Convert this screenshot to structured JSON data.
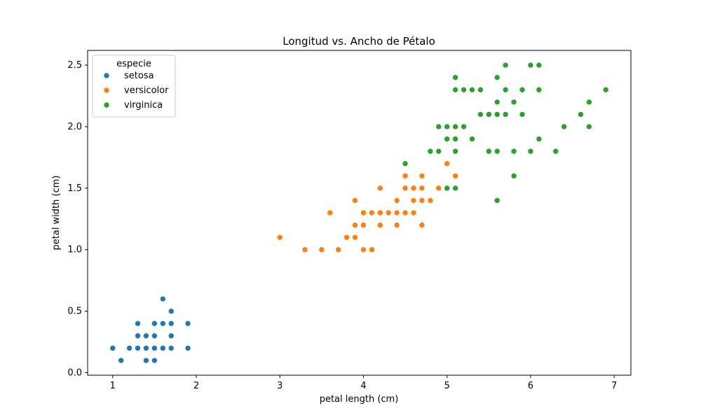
{
  "chart_data": {
    "type": "scatter",
    "title": "Longitud vs. Ancho de Pétalo",
    "xlabel": "petal length (cm)",
    "ylabel": "petal width (cm)",
    "xlim": [
      0.7,
      7.2
    ],
    "ylim": [
      -0.02,
      2.62
    ],
    "xticks": [
      1,
      2,
      3,
      4,
      5,
      6,
      7
    ],
    "yticks": [
      0.0,
      0.5,
      1.0,
      1.5,
      2.0,
      2.5
    ],
    "xtick_labels": [
      "1",
      "2",
      "3",
      "4",
      "5",
      "6",
      "7"
    ],
    "ytick_labels": [
      "0.0",
      "0.5",
      "1.0",
      "1.5",
      "2.0",
      "2.5"
    ],
    "grid": false,
    "legend": {
      "title": "especie",
      "placement": "top-left"
    },
    "series": [
      {
        "name": "setosa",
        "color": "#1f77b4",
        "points": [
          [
            1.0,
            0.2
          ],
          [
            1.1,
            0.1
          ],
          [
            1.2,
            0.2
          ],
          [
            1.3,
            0.2
          ],
          [
            1.3,
            0.3
          ],
          [
            1.3,
            0.4
          ],
          [
            1.4,
            0.1
          ],
          [
            1.4,
            0.2
          ],
          [
            1.4,
            0.3
          ],
          [
            1.5,
            0.1
          ],
          [
            1.5,
            0.2
          ],
          [
            1.5,
            0.3
          ],
          [
            1.5,
            0.4
          ],
          [
            1.6,
            0.2
          ],
          [
            1.6,
            0.4
          ],
          [
            1.6,
            0.6
          ],
          [
            1.7,
            0.2
          ],
          [
            1.7,
            0.3
          ],
          [
            1.7,
            0.4
          ],
          [
            1.7,
            0.5
          ],
          [
            1.9,
            0.2
          ],
          [
            1.9,
            0.4
          ]
        ]
      },
      {
        "name": "versicolor",
        "color": "#ff7f0e",
        "points": [
          [
            3.0,
            1.1
          ],
          [
            3.3,
            1.0
          ],
          [
            3.5,
            1.0
          ],
          [
            3.6,
            1.3
          ],
          [
            3.7,
            1.0
          ],
          [
            3.8,
            1.1
          ],
          [
            3.9,
            1.1
          ],
          [
            3.9,
            1.2
          ],
          [
            3.9,
            1.4
          ],
          [
            4.0,
            1.0
          ],
          [
            4.0,
            1.2
          ],
          [
            4.0,
            1.3
          ],
          [
            4.1,
            1.0
          ],
          [
            4.1,
            1.3
          ],
          [
            4.2,
            1.2
          ],
          [
            4.2,
            1.3
          ],
          [
            4.2,
            1.5
          ],
          [
            4.3,
            1.3
          ],
          [
            4.4,
            1.2
          ],
          [
            4.4,
            1.3
          ],
          [
            4.4,
            1.4
          ],
          [
            4.5,
            1.3
          ],
          [
            4.5,
            1.5
          ],
          [
            4.5,
            1.6
          ],
          [
            4.6,
            1.3
          ],
          [
            4.6,
            1.4
          ],
          [
            4.6,
            1.5
          ],
          [
            4.7,
            1.2
          ],
          [
            4.7,
            1.4
          ],
          [
            4.7,
            1.5
          ],
          [
            4.7,
            1.6
          ],
          [
            4.8,
            1.4
          ],
          [
            4.8,
            1.8
          ],
          [
            4.9,
            1.5
          ],
          [
            5.0,
            1.7
          ],
          [
            5.1,
            1.6
          ]
        ]
      },
      {
        "name": "virginica",
        "color": "#2ca02c",
        "points": [
          [
            4.5,
            1.7
          ],
          [
            4.8,
            1.8
          ],
          [
            4.9,
            1.8
          ],
          [
            4.9,
            2.0
          ],
          [
            5.0,
            1.5
          ],
          [
            5.0,
            1.9
          ],
          [
            5.0,
            2.0
          ],
          [
            5.1,
            1.5
          ],
          [
            5.1,
            1.8
          ],
          [
            5.1,
            1.9
          ],
          [
            5.1,
            2.0
          ],
          [
            5.1,
            2.3
          ],
          [
            5.1,
            2.4
          ],
          [
            5.2,
            2.0
          ],
          [
            5.2,
            2.3
          ],
          [
            5.3,
            1.9
          ],
          [
            5.3,
            2.3
          ],
          [
            5.4,
            2.1
          ],
          [
            5.4,
            2.3
          ],
          [
            5.5,
            1.8
          ],
          [
            5.5,
            2.1
          ],
          [
            5.6,
            1.4
          ],
          [
            5.6,
            1.8
          ],
          [
            5.6,
            2.1
          ],
          [
            5.6,
            2.2
          ],
          [
            5.6,
            2.4
          ],
          [
            5.7,
            2.1
          ],
          [
            5.7,
            2.3
          ],
          [
            5.7,
            2.5
          ],
          [
            5.8,
            1.6
          ],
          [
            5.8,
            1.8
          ],
          [
            5.8,
            2.2
          ],
          [
            5.9,
            2.1
          ],
          [
            5.9,
            2.3
          ],
          [
            6.0,
            1.8
          ],
          [
            6.0,
            2.5
          ],
          [
            6.1,
            1.9
          ],
          [
            6.1,
            2.3
          ],
          [
            6.1,
            2.5
          ],
          [
            6.3,
            1.8
          ],
          [
            6.4,
            2.0
          ],
          [
            6.6,
            2.1
          ],
          [
            6.7,
            2.0
          ],
          [
            6.7,
            2.2
          ],
          [
            6.9,
            2.3
          ]
        ]
      }
    ]
  }
}
